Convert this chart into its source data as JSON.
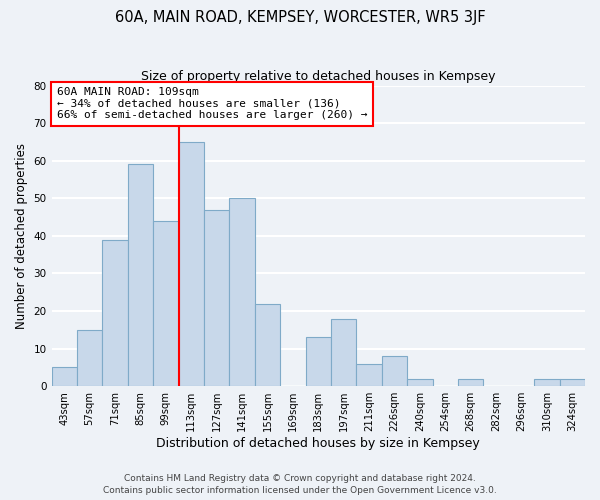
{
  "title": "60A, MAIN ROAD, KEMPSEY, WORCESTER, WR5 3JF",
  "subtitle": "Size of property relative to detached houses in Kempsey",
  "xlabel": "Distribution of detached houses by size in Kempsey",
  "ylabel": "Number of detached properties",
  "bin_labels": [
    "43sqm",
    "57sqm",
    "71sqm",
    "85sqm",
    "99sqm",
    "113sqm",
    "127sqm",
    "141sqm",
    "155sqm",
    "169sqm",
    "183sqm",
    "197sqm",
    "211sqm",
    "226sqm",
    "240sqm",
    "254sqm",
    "268sqm",
    "282sqm",
    "296sqm",
    "310sqm",
    "324sqm"
  ],
  "bar_values": [
    5,
    15,
    39,
    59,
    44,
    65,
    47,
    50,
    22,
    0,
    13,
    18,
    6,
    8,
    2,
    0,
    2,
    0,
    0,
    2,
    2
  ],
  "bar_color": "#c8d8ea",
  "bar_edge_color": "#7faac8",
  "vline_x_idx": 4.5,
  "vline_color": "red",
  "ylim": [
    0,
    80
  ],
  "yticks": [
    0,
    10,
    20,
    30,
    40,
    50,
    60,
    70,
    80
  ],
  "annotation_text": "60A MAIN ROAD: 109sqm\n← 34% of detached houses are smaller (136)\n66% of semi-detached houses are larger (260) →",
  "annotation_box_color": "white",
  "annotation_box_edge_color": "red",
  "footer_line1": "Contains HM Land Registry data © Crown copyright and database right 2024.",
  "footer_line2": "Contains public sector information licensed under the Open Government Licence v3.0.",
  "background_color": "#eef2f7",
  "grid_color": "#d8e0ea"
}
